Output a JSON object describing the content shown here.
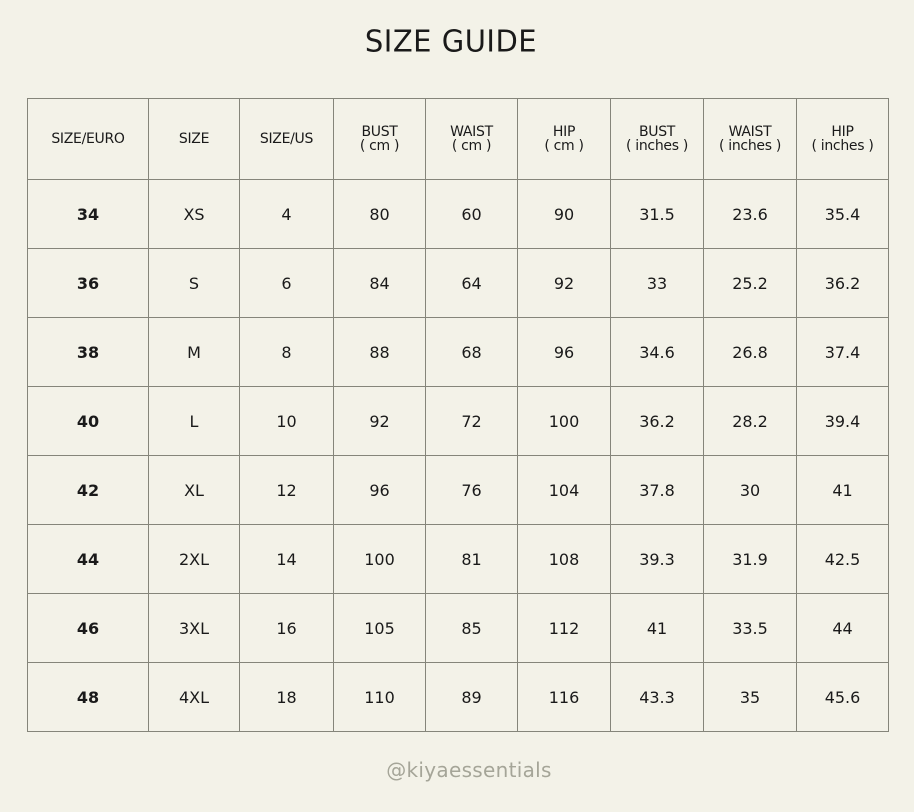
{
  "title": "SIZE GUIDE",
  "table": {
    "headers": [
      {
        "label": "SIZE/EURO",
        "unit": ""
      },
      {
        "label": "SIZE",
        "unit": ""
      },
      {
        "label": "SIZE/US",
        "unit": ""
      },
      {
        "label": "BUST",
        "unit": "( cm )"
      },
      {
        "label": "WAIST",
        "unit": "( cm )"
      },
      {
        "label": "HIP",
        "unit": "( cm )"
      },
      {
        "label": "BUST",
        "unit": "( inches )"
      },
      {
        "label": "WAIST",
        "unit": "( inches )"
      },
      {
        "label": "HIP",
        "unit": "( inches )"
      }
    ],
    "rows": [
      [
        "34",
        "XS",
        "4",
        "80",
        "60",
        "90",
        "31.5",
        "23.6",
        "35.4"
      ],
      [
        "36",
        "S",
        "6",
        "84",
        "64",
        "92",
        "33",
        "25.2",
        "36.2"
      ],
      [
        "38",
        "M",
        "8",
        "88",
        "68",
        "96",
        "34.6",
        "26.8",
        "37.4"
      ],
      [
        "40",
        "L",
        "10",
        "92",
        "72",
        "100",
        "36.2",
        "28.2",
        "39.4"
      ],
      [
        "42",
        "XL",
        "12",
        "96",
        "76",
        "104",
        "37.8",
        "30",
        "41"
      ],
      [
        "44",
        "2XL",
        "14",
        "100",
        "81",
        "108",
        "39.3",
        "31.9",
        "42.5"
      ],
      [
        "46",
        "3XL",
        "16",
        "105",
        "85",
        "112",
        "41",
        "33.5",
        "44"
      ],
      [
        "48",
        "4XL",
        "18",
        "110",
        "89",
        "116",
        "43.3",
        "35",
        "45.6"
      ]
    ]
  },
  "footer": {
    "handle": "@kiyaessentials"
  },
  "colors": {
    "background": "#f3f2e8",
    "border": "#85857a",
    "handle": "#a5a598"
  }
}
